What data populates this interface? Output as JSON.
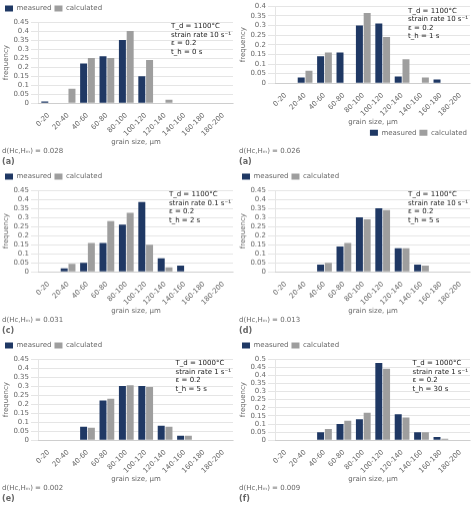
{
  "chart_data": [
    {
      "type": "bar",
      "title": "(a)",
      "subtitle": "d(Hᴄ,Hₘ) = 0.028",
      "annotations": [
        "T_d = 1100°C",
        "strain rate 10 s⁻¹",
        "ε = 0.2",
        "t_h = 0 s"
      ],
      "xlabel": "grain size, μm",
      "ylabel": "frequency",
      "categories": [
        "0-20",
        "20-40",
        "40-60",
        "60-80",
        "80-100",
        "100-120",
        "120-140",
        "140-160",
        "160-180",
        "180-200"
      ],
      "series": [
        {
          "name": "measured",
          "color": "#1F3864",
          "values": [
            0.01,
            0.0,
            0.22,
            0.26,
            0.35,
            0.15,
            0.0,
            0.0,
            0.0,
            0.0
          ]
        },
        {
          "name": "calculated",
          "color": "#9E9E9E",
          "values": [
            0.0,
            0.08,
            0.25,
            0.25,
            0.4,
            0.24,
            0.02,
            0.0,
            0.0,
            0.0
          ]
        }
      ],
      "ylim": [
        0,
        0.45
      ],
      "yticks": [
        0,
        0.05,
        0.1,
        0.15,
        0.2,
        0.25,
        0.3,
        0.35,
        0.4,
        0.45
      ],
      "grid": true,
      "legend": "upper left"
    },
    {
      "type": "bar",
      "title": "(a)",
      "subtitle": "d(Hᴄ,Hₘ) = 0.026",
      "annotations": [
        "T_d = 1100°C",
        "strain rate 10 s⁻¹",
        "ε = 0.2",
        "t_h = 1 s"
      ],
      "xlabel": "grain size, μm",
      "ylabel": "frequency",
      "categories": [
        "0-20",
        "20-40",
        "40-60",
        "60-80",
        "80-100",
        "100-120",
        "120-140",
        "140-160",
        "160-180",
        "180-200"
      ],
      "series": [
        {
          "name": "measured",
          "color": "#1F3864",
          "values": [
            0.0,
            0.03,
            0.14,
            0.16,
            0.3,
            0.31,
            0.035,
            0.0,
            0.02,
            0.0
          ]
        },
        {
          "name": "calculated",
          "color": "#9E9E9E",
          "values": [
            0.0,
            0.065,
            0.16,
            0.0,
            0.365,
            0.24,
            0.125,
            0.03,
            0.0,
            0.0
          ]
        }
      ],
      "ylim": [
        0,
        0.4
      ],
      "yticks": [
        0,
        0.05,
        0.1,
        0.15,
        0.2,
        0.25,
        0.3,
        0.35,
        0.4
      ],
      "grid": true,
      "legend": "lower right"
    },
    {
      "type": "bar",
      "title": "(c)",
      "subtitle": "d(Hᴄ,Hₘ) = 0.031",
      "annotations": [
        "T_d = 1100°C",
        "strain rate 0.1 s⁻¹",
        "ε = 0.2",
        "t_h = 2 s"
      ],
      "xlabel": "grain size, μm",
      "ylabel": "frequency",
      "categories": [
        "0-20",
        "20-40",
        "40-60",
        "60-80",
        "80-100",
        "100-120",
        "120-140",
        "140-160",
        "160-180",
        "180-200"
      ],
      "series": [
        {
          "name": "measured",
          "color": "#1F3864",
          "values": [
            0.0,
            0.02,
            0.05,
            0.16,
            0.26,
            0.385,
            0.075,
            0.035,
            0.0,
            0.0
          ]
        },
        {
          "name": "calculated",
          "color": "#9E9E9E",
          "values": [
            0.0,
            0.045,
            0.16,
            0.28,
            0.325,
            0.15,
            0.025,
            0.0,
            0.0,
            0.0
          ]
        }
      ],
      "ylim": [
        0,
        0.45
      ],
      "yticks": [
        0,
        0.05,
        0.1,
        0.15,
        0.2,
        0.25,
        0.3,
        0.35,
        0.4,
        0.45
      ],
      "grid": true,
      "legend": "upper left"
    },
    {
      "type": "bar",
      "title": "(d)",
      "subtitle": "d(Hᴄ,Hₘ) = 0.013",
      "annotations": [
        "T_d = 1100°C",
        "strain rate 10 s⁻¹",
        "ε = 0.2",
        "t_h = 5 s"
      ],
      "xlabel": "grain size, μm",
      "ylabel": "frequency",
      "categories": [
        "0-20",
        "20-40",
        "40-60",
        "60-80",
        "80-100",
        "100-120",
        "120-140",
        "140-160",
        "160-180",
        "180-200"
      ],
      "series": [
        {
          "name": "measured",
          "color": "#1F3864",
          "values": [
            0.0,
            0.0,
            0.04,
            0.14,
            0.3,
            0.35,
            0.13,
            0.04,
            0.0,
            0.0
          ]
        },
        {
          "name": "calculated",
          "color": "#9E9E9E",
          "values": [
            0.0,
            0.0,
            0.05,
            0.16,
            0.29,
            0.34,
            0.13,
            0.035,
            0.0,
            0.0
          ]
        }
      ],
      "ylim": [
        0,
        0.45
      ],
      "yticks": [
        0,
        0.05,
        0.1,
        0.15,
        0.2,
        0.25,
        0.3,
        0.35,
        0.4,
        0.45
      ],
      "grid": true,
      "legend": "upper left"
    },
    {
      "type": "bar",
      "title": "(e)",
      "subtitle": "d(Hᴄ,Hₘ) = 0.002",
      "annotations": [
        "T_d = 1000°C",
        "strain rate 1 s⁻¹",
        "ε = 0.2",
        "t_h = 5 s"
      ],
      "xlabel": "grain size, μm",
      "ylabel": "frequency",
      "categories": [
        "0-20",
        "20-40",
        "40-60",
        "60-80",
        "80-100",
        "100-120",
        "120-140",
        "140-160",
        "160-180",
        "180-200"
      ],
      "series": [
        {
          "name": "measured",
          "color": "#1F3864",
          "values": [
            0.0,
            0.0,
            0.075,
            0.22,
            0.3,
            0.3,
            0.08,
            0.025,
            0.0,
            0.0
          ]
        },
        {
          "name": "calculated",
          "color": "#9E9E9E",
          "values": [
            0.0,
            0.0,
            0.07,
            0.23,
            0.305,
            0.295,
            0.075,
            0.025,
            0.0,
            0.0
          ]
        }
      ],
      "ylim": [
        0,
        0.45
      ],
      "yticks": [
        0,
        0.05,
        0.1,
        0.15,
        0.2,
        0.25,
        0.3,
        0.35,
        0.4,
        0.45
      ],
      "grid": true,
      "legend": "upper left"
    },
    {
      "type": "bar",
      "title": "(f)",
      "subtitle": "d(Hᴄ,Hₘ) = 0.009",
      "annotations": [
        "T_d = 1000°C",
        "strain rate 1 s⁻¹",
        "ε = 0.2",
        "t_h = 30 s"
      ],
      "xlabel": "grain size, μm",
      "ylabel": "frequency",
      "categories": [
        "0-20",
        "20-40",
        "40-60",
        "60-80",
        "80-100",
        "100-120",
        "120-140",
        "140-160",
        "160-180",
        "180-200"
      ],
      "series": [
        {
          "name": "measured",
          "color": "#1F3864",
          "values": [
            0.0,
            0.0,
            0.05,
            0.1,
            0.13,
            0.475,
            0.16,
            0.05,
            0.02,
            0.0
          ]
        },
        {
          "name": "calculated",
          "color": "#9E9E9E",
          "values": [
            0.0,
            0.0,
            0.07,
            0.12,
            0.17,
            0.44,
            0.14,
            0.05,
            0.01,
            0.0
          ]
        }
      ],
      "ylim": [
        0,
        0.5
      ],
      "yticks": [
        0,
        0.05,
        0.1,
        0.15,
        0.2,
        0.25,
        0.3,
        0.35,
        0.4,
        0.45,
        0.5
      ],
      "grid": true,
      "legend": "upper left"
    }
  ]
}
